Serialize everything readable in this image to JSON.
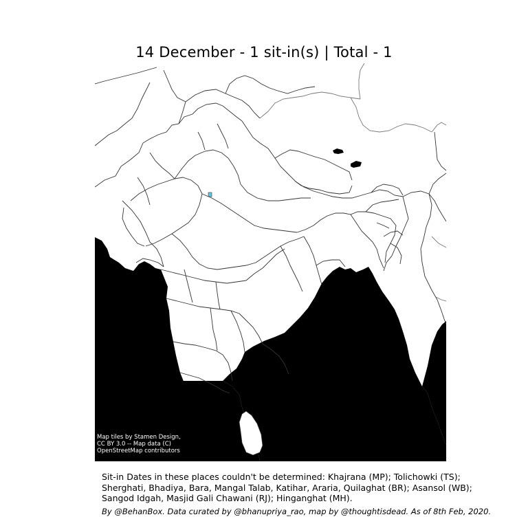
{
  "title": "14 December - 1 sit-in(s) | Total - 1",
  "map": {
    "attribution": "Map tiles by Stamen Design, CC BY 3.0 -- Map data (C) OpenStreetMap contributors",
    "colors": {
      "land": "#ffffff",
      "water": "#000000",
      "border": "#333333",
      "marker": "#5ec8e6"
    },
    "marker_icon": "sit-in-marker-icon"
  },
  "note": "Sit-in Dates in these places couldn't be determined: Khajrana (MP); Tolichowki (TS); Sherghati, Bhadiya, Bara, Mangal Talab, Katihar, Araria, Quilaghat (BR); Asansol (WB); Sangod Idgah, Masjid Gali Chawani (RJ); Hinganghat (MH).",
  "credit": "By @BehanBox. Data curated by @bhanupriya_rao, map by @thoughtisdead. As of 8th Feb, 2020."
}
